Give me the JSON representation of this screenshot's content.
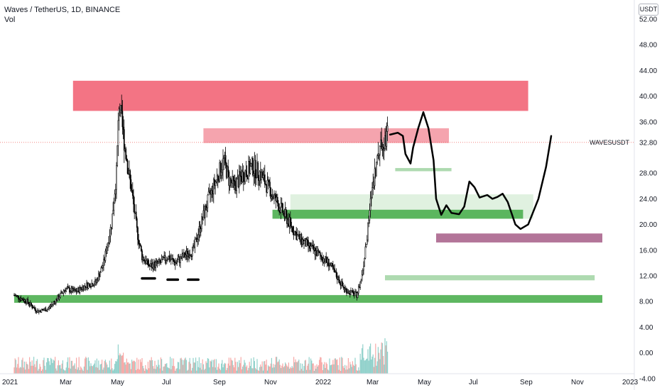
{
  "header": {
    "title": "Waves / TetherUS, 1D, BINANCE",
    "indicator": "Vol"
  },
  "currency_badge": "USDT",
  "symbol_label": "WAVESUSDT",
  "colors": {
    "up": "#26a69a",
    "down": "#ef5350",
    "resistance_strong": "#f26d7d",
    "resistance_light": "#f49aa5",
    "support_strong": "#4caf50",
    "support_light": "#a5d6a7",
    "target_zone": "#a0527f",
    "drawing": "#000000",
    "price_line": "#ef5350"
  },
  "chart_data": {
    "type": "candlestick",
    "y_axis": {
      "range": [
        -4,
        54
      ],
      "ticks": [
        "52.00",
        "48.00",
        "44.00",
        "40.00",
        "36.00",
        "32.80",
        "28.00",
        "24.00",
        "20.00",
        "16.00",
        "12.00",
        "8.00",
        "4.00",
        "0.00",
        "-4.00"
      ]
    },
    "x_axis": {
      "range_months": [
        0,
        24.3
      ],
      "ticks": [
        {
          "label": "2021",
          "m": 0
        },
        {
          "label": "Mar",
          "m": 2
        },
        {
          "label": "May",
          "m": 4
        },
        {
          "label": "Jul",
          "m": 6
        },
        {
          "label": "Sep",
          "m": 8
        },
        {
          "label": "Nov",
          "m": 10
        },
        {
          "label": "2022",
          "m": 12
        },
        {
          "label": "Mar",
          "m": 14
        },
        {
          "label": "May",
          "m": 16
        },
        {
          "label": "Jul",
          "m": 18
        },
        {
          "label": "Sep",
          "m": 20
        },
        {
          "label": "Nov",
          "m": 22
        },
        {
          "label": "2023",
          "m": 24
        }
      ]
    },
    "last_price": 32.8,
    "price_path": [
      [
        0,
        9
      ],
      [
        0.5,
        8
      ],
      [
        0.9,
        6.5
      ],
      [
        1.3,
        6.8
      ],
      [
        1.7,
        8.5
      ],
      [
        2,
        10
      ],
      [
        2.4,
        9.5
      ],
      [
        2.8,
        10.5
      ],
      [
        3.2,
        11
      ],
      [
        3.5,
        14
      ],
      [
        3.8,
        20
      ],
      [
        4.0,
        28
      ],
      [
        4.1,
        39
      ],
      [
        4.2,
        36
      ],
      [
        4.4,
        30
      ],
      [
        4.6,
        25
      ],
      [
        4.8,
        19
      ],
      [
        5.0,
        15
      ],
      [
        5.3,
        13.5
      ],
      [
        5.7,
        14
      ],
      [
        6.0,
        15
      ],
      [
        6.3,
        14
      ],
      [
        6.6,
        15
      ],
      [
        7.0,
        16
      ],
      [
        7.3,
        20
      ],
      [
        7.6,
        24
      ],
      [
        7.9,
        27
      ],
      [
        8.2,
        30
      ],
      [
        8.4,
        27
      ],
      [
        8.6,
        26
      ],
      [
        8.8,
        27
      ],
      [
        9.0,
        28
      ],
      [
        9.3,
        29
      ],
      [
        9.6,
        28
      ],
      [
        9.9,
        26
      ],
      [
        10.2,
        24
      ],
      [
        10.5,
        22
      ],
      [
        10.8,
        20
      ],
      [
        11.1,
        18
      ],
      [
        11.4,
        17
      ],
      [
        11.7,
        16
      ],
      [
        12.0,
        15
      ],
      [
        12.3,
        14
      ],
      [
        12.6,
        12
      ],
      [
        12.9,
        10
      ],
      [
        13.1,
        9.5
      ],
      [
        13.4,
        9
      ],
      [
        13.6,
        12
      ],
      [
        13.8,
        18
      ],
      [
        14.0,
        26
      ],
      [
        14.2,
        30
      ],
      [
        14.4,
        33
      ],
      [
        14.6,
        34
      ]
    ],
    "volume_range": [
      0,
      5
    ],
    "zones": [
      {
        "name": "resistance_major",
        "x": [
          2.3,
          20.1
        ],
        "y": [
          37.7,
          42.4
        ],
        "style": "resistance_strong"
      },
      {
        "name": "resistance_minor",
        "x": [
          7.4,
          17.0
        ],
        "y": [
          32.7,
          35.0
        ],
        "style": "resistance_light"
      },
      {
        "name": "support_light_1",
        "x": [
          14.9,
          17.1
        ],
        "y": [
          28.3,
          28.8
        ],
        "style": "support_light"
      },
      {
        "name": "support_light_2",
        "x": [
          10.8,
          20.3
        ],
        "y": [
          20.9,
          24.7
        ],
        "style": "support_light_faint"
      },
      {
        "name": "support_mid",
        "x": [
          10.1,
          19.9
        ],
        "y": [
          20.9,
          22.3
        ],
        "style": "support_strong"
      },
      {
        "name": "target",
        "x": [
          16.5,
          23.0
        ],
        "y": [
          17.2,
          18.6
        ],
        "style": "target_zone"
      },
      {
        "name": "support_light_3",
        "x": [
          14.5,
          22.7
        ],
        "y": [
          11.3,
          12.1
        ],
        "style": "support_light"
      },
      {
        "name": "support_base",
        "x": [
          0,
          23.0
        ],
        "y": [
          7.8,
          9.0
        ],
        "style": "support_strong"
      }
    ],
    "level_markers": [
      {
        "x": [
          5.0,
          5.5
        ],
        "y": 11.6
      },
      {
        "x": [
          6.0,
          6.4
        ],
        "y": 11.4
      },
      {
        "x": [
          6.8,
          7.2
        ],
        "y": 11.4
      }
    ],
    "projection_path": [
      [
        14.7,
        34
      ],
      [
        15.0,
        34.3
      ],
      [
        15.2,
        33.8
      ],
      [
        15.3,
        31
      ],
      [
        15.5,
        29.5
      ],
      [
        15.6,
        32
      ],
      [
        15.8,
        35
      ],
      [
        16.0,
        37.5
      ],
      [
        16.2,
        35
      ],
      [
        16.4,
        30
      ],
      [
        16.5,
        24
      ],
      [
        16.7,
        21.5
      ],
      [
        16.9,
        23
      ],
      [
        17.1,
        21.8
      ],
      [
        17.4,
        21.6
      ],
      [
        17.6,
        22.8
      ],
      [
        17.8,
        26.7
      ],
      [
        18.0,
        25.8
      ],
      [
        18.2,
        24.2
      ],
      [
        18.5,
        24.6
      ],
      [
        18.7,
        24
      ],
      [
        18.9,
        24.3
      ],
      [
        19.1,
        24.8
      ],
      [
        19.3,
        23.5
      ],
      [
        19.6,
        20
      ],
      [
        19.8,
        19.3
      ],
      [
        20.1,
        20
      ],
      [
        20.5,
        24
      ],
      [
        20.8,
        29
      ],
      [
        21.0,
        33.8
      ]
    ]
  }
}
